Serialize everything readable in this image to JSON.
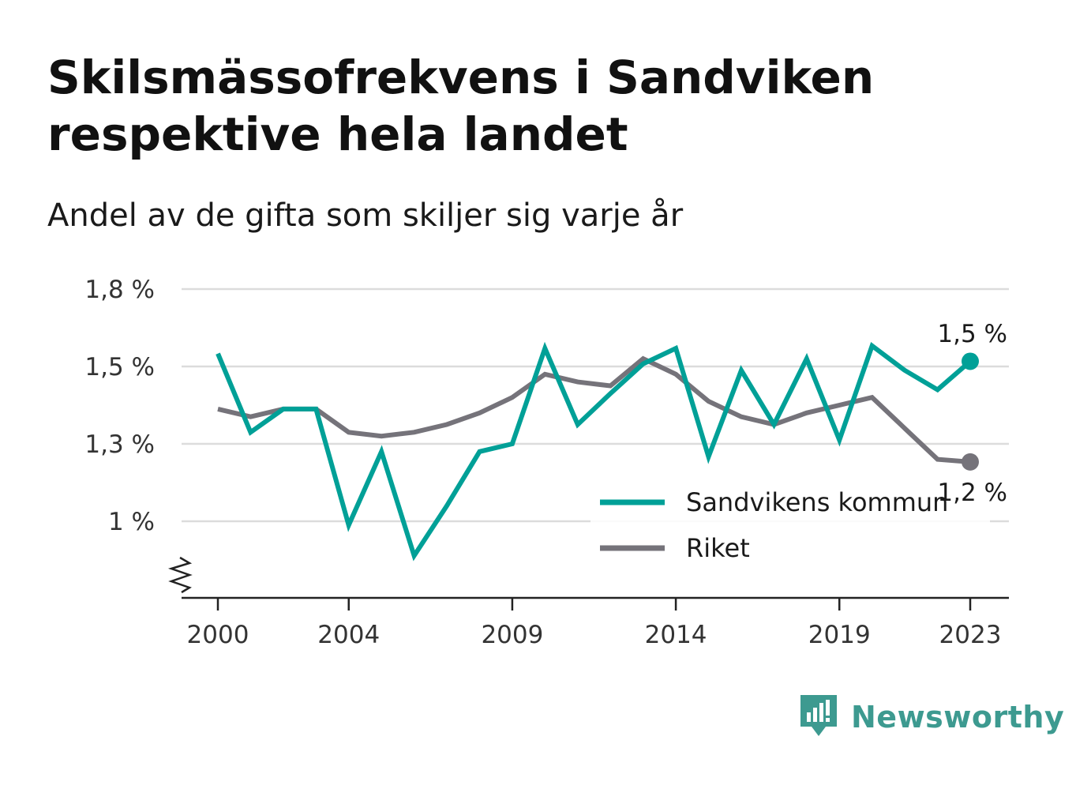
{
  "title": "Skilsmässofrekvens i Sandviken respektive hela landet",
  "subtitle": "Andel av de gifta som skiljer sig varje år",
  "brand": {
    "name": "Newsworthy",
    "icon": "bar-chart-badge-icon",
    "color": "#3d9a90"
  },
  "chart_data": {
    "type": "line",
    "title": "Skilsmässofrekvens i Sandviken respektive hela landet",
    "subtitle": "Andel av de gifta som skiljer sig varje år",
    "x": [
      2000,
      2001,
      2002,
      2003,
      2004,
      2005,
      2006,
      2007,
      2008,
      2009,
      2010,
      2011,
      2012,
      2013,
      2014,
      2015,
      2016,
      2017,
      2018,
      2019,
      2020,
      2021,
      2022,
      2023
    ],
    "x_ticks": [
      2000,
      2004,
      2009,
      2014,
      2019,
      2023
    ],
    "x_tick_labels": [
      "2000",
      "2004",
      "2009",
      "2014",
      "2019",
      "2023"
    ],
    "y_ticks": [
      1.0,
      1.3,
      1.5,
      1.8
    ],
    "y_tick_labels": [
      "1 %",
      "1,3 %",
      "1,5 %",
      "1,8 %"
    ],
    "ylim": [
      0.8,
      1.8
    ],
    "y_axis_break": true,
    "grid": true,
    "legend_position": "bottom-right",
    "series": [
      {
        "name": "Sandvikens kommun",
        "color": "#00a097",
        "values": [
          1.55,
          1.33,
          1.39,
          1.39,
          0.99,
          1.27,
          0.91,
          1.06,
          1.27,
          1.3,
          1.57,
          1.35,
          1.43,
          1.51,
          1.57,
          1.25,
          1.49,
          1.35,
          1.53,
          1.31,
          1.58,
          1.49,
          1.44,
          1.52
        ],
        "end_label": "1,5 %"
      },
      {
        "name": "Riket",
        "color": "#75737a",
        "values": [
          1.39,
          1.37,
          1.39,
          1.39,
          1.33,
          1.32,
          1.33,
          1.35,
          1.38,
          1.42,
          1.48,
          1.46,
          1.45,
          1.53,
          1.48,
          1.41,
          1.37,
          1.35,
          1.38,
          1.4,
          1.42,
          1.34,
          1.24,
          1.23
        ],
        "end_label": "1,2 %"
      }
    ]
  }
}
